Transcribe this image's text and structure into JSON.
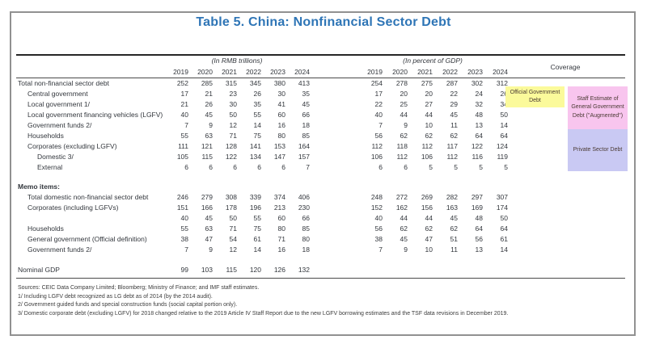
{
  "title": "Table 5. China: Nonfinancial Sector Debt",
  "header": {
    "group1": "(In RMB trillions)",
    "group2": "(In percent of GDP)",
    "coverage": "Coverage",
    "years": [
      "2019",
      "2020",
      "2021",
      "2022",
      "2023",
      "2024"
    ]
  },
  "main_rows": [
    {
      "label": "Total non-financial sector debt",
      "indent": 0,
      "rmb": [
        252,
        285,
        315,
        345,
        380,
        413
      ],
      "gdp": [
        254,
        278,
        275,
        287,
        302,
        312
      ]
    },
    {
      "label": "Central government",
      "indent": 1,
      "rmb": [
        17,
        21,
        23,
        26,
        30,
        35
      ],
      "gdp": [
        17,
        20,
        20,
        22,
        24,
        26
      ]
    },
    {
      "label": "Local government 1/",
      "indent": 1,
      "rmb": [
        21,
        26,
        30,
        35,
        41,
        45
      ],
      "gdp": [
        22,
        25,
        27,
        29,
        32,
        34
      ]
    },
    {
      "label": "Local government financing vehicles (LGFV)",
      "indent": 1,
      "rmb": [
        40,
        45,
        50,
        55,
        60,
        66
      ],
      "gdp": [
        40,
        44,
        44,
        45,
        48,
        50
      ]
    },
    {
      "label": "Government funds 2/",
      "indent": 1,
      "rmb": [
        7,
        9,
        12,
        14,
        16,
        18
      ],
      "gdp": [
        7,
        9,
        10,
        11,
        13,
        14
      ]
    },
    {
      "label": "Households",
      "indent": 1,
      "rmb": [
        55,
        63,
        71,
        75,
        80,
        85
      ],
      "gdp": [
        56,
        62,
        62,
        62,
        64,
        64
      ]
    },
    {
      "label": "Corporates (excluding LGFV)",
      "indent": 1,
      "rmb": [
        111,
        121,
        128,
        141,
        153,
        164
      ],
      "gdp": [
        112,
        118,
        112,
        117,
        122,
        124
      ]
    },
    {
      "label": "Domestic 3/",
      "indent": 2,
      "rmb": [
        105,
        115,
        122,
        134,
        147,
        157
      ],
      "gdp": [
        106,
        112,
        106,
        112,
        116,
        119
      ]
    },
    {
      "label": "External",
      "indent": 2,
      "rmb": [
        6,
        6,
        6,
        6,
        6,
        7
      ],
      "gdp": [
        6,
        6,
        5,
        5,
        5,
        5
      ]
    }
  ],
  "memo_title": "Memo items:",
  "memo_rows": [
    {
      "label": "Total domestic non-financial sector debt",
      "indent": 1,
      "rmb": [
        246,
        279,
        308,
        339,
        374,
        406
      ],
      "gdp": [
        248,
        272,
        269,
        282,
        297,
        307
      ]
    },
    {
      "label": "Corporates (including LGFVs)",
      "indent": 1,
      "rmb": [
        151,
        166,
        178,
        196,
        213,
        230
      ],
      "gdp": [
        152,
        162,
        156,
        163,
        169,
        174
      ]
    },
    {
      "label": "",
      "indent": 1,
      "rmb": [
        40,
        45,
        50,
        55,
        60,
        66
      ],
      "gdp": [
        40,
        44,
        44,
        45,
        48,
        50
      ]
    },
    {
      "label": "Households",
      "indent": 1,
      "rmb": [
        55,
        63,
        71,
        75,
        80,
        85
      ],
      "gdp": [
        56,
        62,
        62,
        62,
        64,
        64
      ]
    },
    {
      "label": "General government (Official definition)",
      "indent": 1,
      "rmb": [
        38,
        47,
        54,
        61,
        71,
        80
      ],
      "gdp": [
        38,
        45,
        47,
        51,
        56,
        61
      ]
    },
    {
      "label": "Government funds 2/",
      "indent": 1,
      "rmb": [
        7,
        9,
        12,
        14,
        16,
        18
      ],
      "gdp": [
        7,
        9,
        10,
        11,
        13,
        14
      ]
    }
  ],
  "gdp_row": {
    "label": "Nominal GDP",
    "indent": 0,
    "rmb": [
      99,
      103,
      115,
      120,
      126,
      132
    ],
    "gdp": []
  },
  "coverage_boxes": [
    {
      "label": "Official Government Debt",
      "color": "#fbfa9b"
    },
    {
      "label": "Staff Estimate of General Government Debt (\"Augmented\")",
      "color": "#f8c5ee"
    },
    {
      "label": "Private Sector Debt",
      "color": "#c9c9f3"
    }
  ],
  "footnotes": [
    "Sources: CEIC Data Company Limited; Bloomberg; Ministry of Finance; and IMF staff estimates.",
    "1/ Including LGFV debt recognized as LG debt as of 2014 (by the 2014 audit).",
    "2/ Government guided funds and special construction funds (social capital portion only).",
    "3/ Domestic corporate debt (excluding LGFV) for 2018 changed relative to the 2019 Article IV Staff Report due to the new LGFV borrowing estimates and the TSF data revisions in December 2019."
  ]
}
